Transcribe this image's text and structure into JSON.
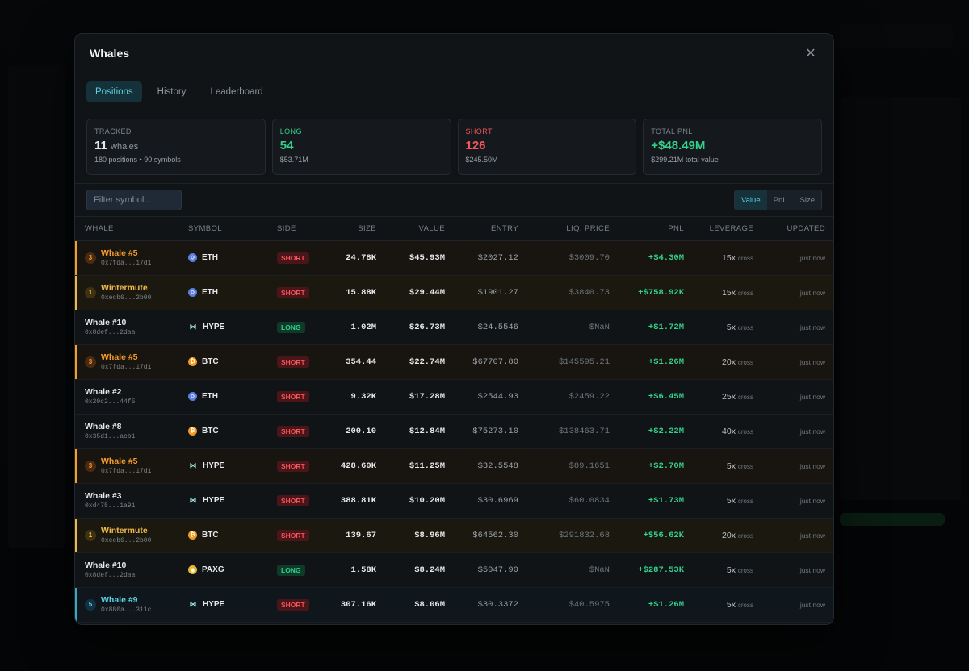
{
  "modal": {
    "title": "Whales",
    "close_icon": "close-icon"
  },
  "tabs": [
    {
      "label": "Positions",
      "active": true
    },
    {
      "label": "History",
      "active": false
    },
    {
      "label": "Leaderboard",
      "active": false
    }
  ],
  "stats": {
    "tracked": {
      "label": "TRACKED",
      "value": "11",
      "unit": "whales",
      "sub": "180 positions • 90 symbols"
    },
    "long": {
      "label": "LONG",
      "value": "54",
      "sub": "$53.71M",
      "color": "#33d18a"
    },
    "short": {
      "label": "SHORT",
      "value": "126",
      "sub": "$245.50M",
      "color": "#f2555a"
    },
    "pnl": {
      "label": "TOTAL PNL",
      "value": "+$48.49M",
      "sub": "$299.21M total value",
      "color": "#33d18a"
    }
  },
  "filter": {
    "placeholder": "Filter symbol..."
  },
  "sort": [
    {
      "label": "Value",
      "active": true
    },
    {
      "label": "PnL",
      "active": false
    },
    {
      "label": "Size",
      "active": false
    }
  ],
  "columns": [
    "WHALE",
    "SYMBOL",
    "SIDE",
    "SIZE",
    "VALUE",
    "ENTRY",
    "LIQ. PRICE",
    "PNL",
    "LEVERAGE",
    "UPDATED"
  ],
  "rows": [
    {
      "rank": "3",
      "tone": "orange",
      "name": "Whale #5",
      "addr": "0x7fda...17d1",
      "coin": "eth",
      "symbol": "ETH",
      "side": "SHORT",
      "size": "24.78K",
      "value": "$45.93M",
      "entry": "$2027.12",
      "liq": "$3009.70",
      "pnl": "+$4.30M",
      "lev": "15x",
      "mode": "cross",
      "updated": "just now"
    },
    {
      "rank": "1",
      "tone": "gold",
      "name": "Wintermute",
      "addr": "0xecb6...2b00",
      "coin": "eth",
      "symbol": "ETH",
      "side": "SHORT",
      "size": "15.88K",
      "value": "$29.44M",
      "entry": "$1901.27",
      "liq": "$3840.73",
      "pnl": "+$758.92K",
      "lev": "15x",
      "mode": "cross",
      "updated": "just now"
    },
    {
      "rank": "",
      "tone": "none",
      "name": "Whale #10",
      "addr": "0x8def...2daa",
      "coin": "hype",
      "symbol": "HYPE",
      "side": "LONG",
      "size": "1.02M",
      "value": "$26.73M",
      "entry": "$24.5546",
      "liq": "$NaN",
      "pnl": "+$1.72M",
      "lev": "5x",
      "mode": "cross",
      "updated": "just now"
    },
    {
      "rank": "3",
      "tone": "orange",
      "name": "Whale #5",
      "addr": "0x7fda...17d1",
      "coin": "btc",
      "symbol": "BTC",
      "side": "SHORT",
      "size": "354.44",
      "value": "$22.74M",
      "entry": "$67707.80",
      "liq": "$145595.21",
      "pnl": "+$1.26M",
      "lev": "20x",
      "mode": "cross",
      "updated": "just now"
    },
    {
      "rank": "",
      "tone": "none",
      "name": "Whale #2",
      "addr": "0x20c2...44f5",
      "coin": "eth",
      "symbol": "ETH",
      "side": "SHORT",
      "size": "9.32K",
      "value": "$17.28M",
      "entry": "$2544.93",
      "liq": "$2459.22",
      "pnl": "+$6.45M",
      "lev": "25x",
      "mode": "cross",
      "updated": "just now"
    },
    {
      "rank": "",
      "tone": "none",
      "name": "Whale #8",
      "addr": "0x35d1...acb1",
      "coin": "btc",
      "symbol": "BTC",
      "side": "SHORT",
      "size": "200.10",
      "value": "$12.84M",
      "entry": "$75273.10",
      "liq": "$138463.71",
      "pnl": "+$2.22M",
      "lev": "40x",
      "mode": "cross",
      "updated": "just now"
    },
    {
      "rank": "3",
      "tone": "orange",
      "name": "Whale #5",
      "addr": "0x7fda...17d1",
      "coin": "hype",
      "symbol": "HYPE",
      "side": "SHORT",
      "size": "428.60K",
      "value": "$11.25M",
      "entry": "$32.5548",
      "liq": "$89.1651",
      "pnl": "+$2.70M",
      "lev": "5x",
      "mode": "cross",
      "updated": "just now"
    },
    {
      "rank": "",
      "tone": "none",
      "name": "Whale #3",
      "addr": "0xd475...1a91",
      "coin": "hype",
      "symbol": "HYPE",
      "side": "SHORT",
      "size": "388.81K",
      "value": "$10.20M",
      "entry": "$30.6969",
      "liq": "$60.0834",
      "pnl": "+$1.73M",
      "lev": "5x",
      "mode": "cross",
      "updated": "just now"
    },
    {
      "rank": "1",
      "tone": "gold",
      "name": "Wintermute",
      "addr": "0xecb6...2b00",
      "coin": "btc",
      "symbol": "BTC",
      "side": "SHORT",
      "size": "139.67",
      "value": "$8.96M",
      "entry": "$64562.30",
      "liq": "$291832.68",
      "pnl": "+$56.62K",
      "lev": "20x",
      "mode": "cross",
      "updated": "just now"
    },
    {
      "rank": "",
      "tone": "none",
      "name": "Whale #10",
      "addr": "0x8def...2daa",
      "coin": "paxg",
      "symbol": "PAXG",
      "side": "LONG",
      "size": "1.58K",
      "value": "$8.24M",
      "entry": "$5047.90",
      "liq": "$NaN",
      "pnl": "+$287.53K",
      "lev": "5x",
      "mode": "cross",
      "updated": "just now"
    },
    {
      "rank": "5",
      "tone": "blue",
      "name": "Whale #9",
      "addr": "0x880a...311c",
      "coin": "hype",
      "symbol": "HYPE",
      "side": "SHORT",
      "size": "307.16K",
      "value": "$8.06M",
      "entry": "$30.3372",
      "liq": "$40.5975",
      "pnl": "+$1.26M",
      "lev": "5x",
      "mode": "cross",
      "updated": "just now"
    }
  ]
}
